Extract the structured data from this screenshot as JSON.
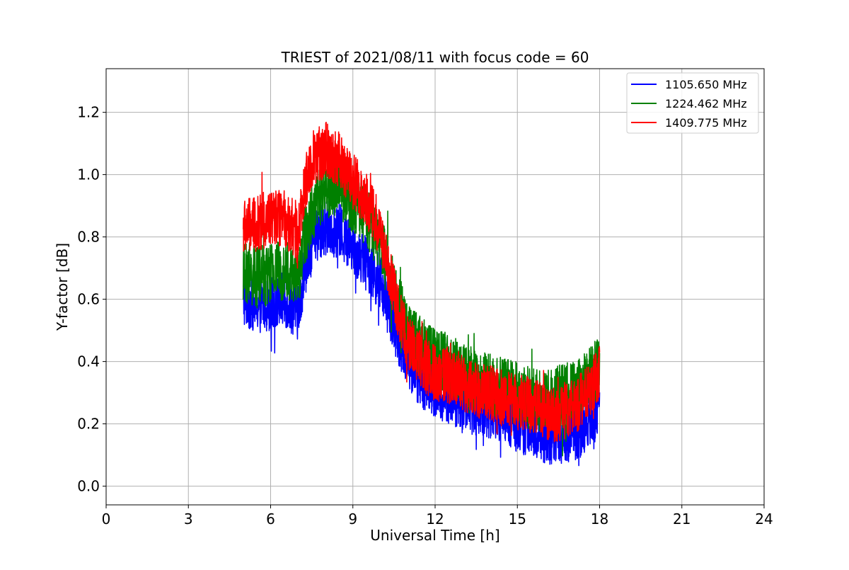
{
  "chart_data": {
    "type": "line",
    "title": "TRIEST of 2021/08/11 with focus code = 60",
    "xlabel": "Universal Time [h]",
    "ylabel": "Y-factor [dB]",
    "xlim": [
      0,
      24
    ],
    "ylim": [
      -0.06,
      1.34
    ],
    "xticks": [
      0,
      3,
      6,
      9,
      12,
      15,
      18,
      21,
      24
    ],
    "xtick_labels": [
      "0",
      "3",
      "6",
      "9",
      "12",
      "15",
      "18",
      "21",
      "24"
    ],
    "yticks": [
      0.0,
      0.2,
      0.4,
      0.6,
      0.8,
      1.0,
      1.2
    ],
    "ytick_labels": [
      "0.0",
      "0.2",
      "0.4",
      "0.6",
      "0.8",
      "1.0",
      "1.2"
    ],
    "grid": true,
    "legend_position": "top-right",
    "series": [
      {
        "name": "1105.650 MHz",
        "color": "#0000ff",
        "x": [
          5.0,
          5.5,
          6.0,
          6.5,
          7.0,
          7.25,
          7.5,
          8.0,
          8.5,
          9.0,
          9.5,
          10.0,
          10.5,
          11.0,
          11.5,
          12.0,
          12.5,
          13.0,
          13.5,
          14.0,
          14.5,
          15.0,
          15.5,
          16.0,
          16.5,
          17.0,
          17.5,
          18.0
        ],
        "y": [
          0.6,
          0.58,
          0.59,
          0.6,
          0.56,
          0.7,
          0.78,
          0.83,
          0.82,
          0.77,
          0.72,
          0.65,
          0.52,
          0.4,
          0.34,
          0.3,
          0.29,
          0.27,
          0.25,
          0.24,
          0.22,
          0.2,
          0.18,
          0.16,
          0.16,
          0.17,
          0.19,
          0.25
        ],
        "noise": 0.09
      },
      {
        "name": "1224.462 MHz",
        "color": "#008000",
        "x": [
          5.0,
          5.5,
          6.0,
          6.5,
          7.0,
          7.25,
          7.5,
          8.0,
          8.5,
          9.0,
          9.5,
          10.0,
          10.5,
          11.0,
          11.5,
          12.0,
          12.5,
          13.0,
          13.5,
          14.0,
          14.5,
          15.0,
          15.5,
          16.0,
          16.5,
          17.0,
          17.5,
          18.0
        ],
        "y": [
          0.68,
          0.67,
          0.68,
          0.7,
          0.66,
          0.8,
          0.88,
          0.95,
          0.96,
          0.91,
          0.87,
          0.78,
          0.63,
          0.5,
          0.45,
          0.41,
          0.39,
          0.36,
          0.34,
          0.33,
          0.31,
          0.3,
          0.28,
          0.27,
          0.29,
          0.3,
          0.33,
          0.39
        ],
        "noise": 0.1
      },
      {
        "name": "1409.775 MHz",
        "color": "#ff0000",
        "x": [
          5.0,
          5.5,
          6.0,
          6.5,
          7.0,
          7.25,
          7.5,
          8.0,
          8.5,
          9.0,
          9.5,
          10.0,
          10.5,
          11.0,
          11.5,
          12.0,
          12.5,
          13.0,
          13.5,
          14.0,
          14.5,
          15.0,
          15.5,
          16.0,
          16.5,
          17.0,
          17.5,
          18.0
        ],
        "y": [
          0.83,
          0.84,
          0.86,
          0.86,
          0.8,
          0.96,
          1.05,
          1.08,
          1.05,
          0.98,
          0.92,
          0.82,
          0.62,
          0.46,
          0.4,
          0.36,
          0.35,
          0.33,
          0.31,
          0.3,
          0.28,
          0.27,
          0.26,
          0.24,
          0.23,
          0.25,
          0.29,
          0.36
        ],
        "noise": 0.09
      }
    ]
  }
}
